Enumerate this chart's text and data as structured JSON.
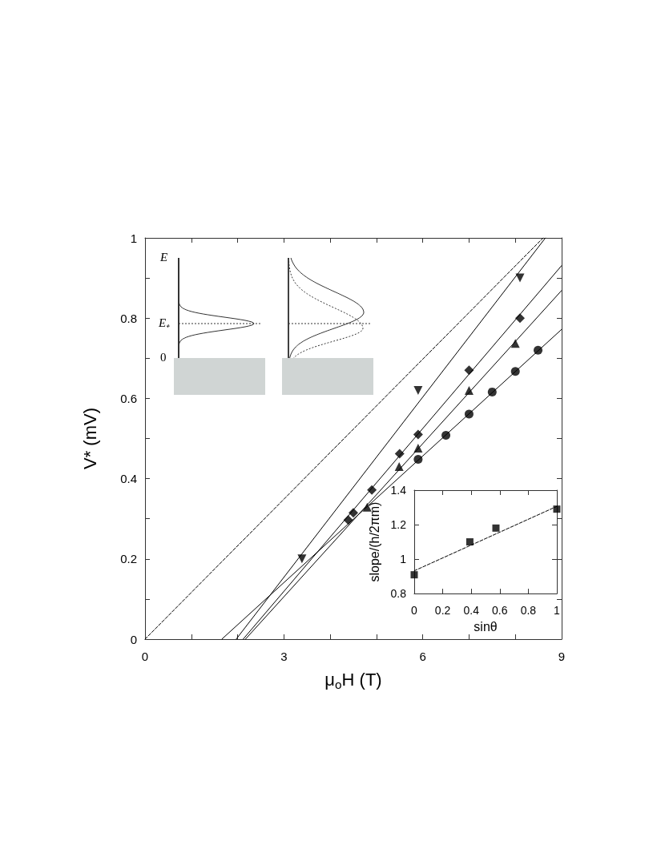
{
  "chart_data": [
    {
      "type": "scatter",
      "xlabel": "μ$_{o}$H (T)",
      "ylabel": "V* (mV)",
      "xlim": [
        0,
        9
      ],
      "ylim": [
        0,
        1
      ],
      "xticks": [
        0,
        {
          "value": 1,
          "label": null
        },
        {
          "value": 2,
          "label": null
        },
        3,
        {
          "value": 4,
          "label": null
        },
        {
          "value": 5,
          "label": null
        },
        6,
        {
          "value": 7,
          "label": null
        },
        {
          "value": 8,
          "label": null
        },
        9
      ],
      "yticks": [
        0,
        {
          "value": 0.1,
          "label": null
        },
        0.2,
        {
          "value": 0.3,
          "label": null
        },
        0.4,
        {
          "value": 0.5,
          "label": null
        },
        0.6,
        {
          "value": 0.7,
          "label": null
        },
        0.8,
        {
          "value": 0.9,
          "label": null
        },
        1
      ],
      "annotations": [
        "E",
        "E₊",
        "0"
      ],
      "series": [
        {
          "color": "#000000",
          "marker": "triangle-down",
          "x": [
            3.39,
            5.9,
            8.1
          ],
          "values": [
            0.2,
            0.62,
            0.9
          ]
        },
        {
          "color": "#000000",
          "marker": "diamond",
          "x": [
            4.39,
            4.5,
            4.9,
            5.5,
            5.9,
            7.0,
            8.1
          ],
          "values": [
            0.297,
            0.315,
            0.372,
            0.462,
            0.51,
            0.67,
            0.8
          ]
        },
        {
          "color": "#000000",
          "marker": "triangle",
          "x": [
            4.8,
            5.49,
            5.9,
            7.0,
            8.0
          ],
          "values": [
            0.329,
            0.43,
            0.476,
            0.62,
            0.737
          ]
        },
        {
          "color": "#000000",
          "marker": "circle",
          "x": [
            5.9,
            6.5,
            7.0,
            7.5,
            8.0,
            8.49
          ],
          "values": [
            0.448,
            0.508,
            0.561,
            0.616,
            0.667,
            0.72
          ]
        },
        {
          "type": "line",
          "color": "#000000",
          "marker": "none",
          "line_style": "solid",
          "x": [
            1.97,
            8.65
          ],
          "values": [
            0,
            1
          ]
        },
        {
          "type": "line",
          "color": "#000000",
          "marker": "none",
          "line_style": "solid",
          "x": [
            2.12,
            9
          ],
          "values": [
            0,
            0.931
          ]
        },
        {
          "type": "line",
          "color": "#000000",
          "marker": "none",
          "line_style": "solid",
          "x": [
            2.17,
            9
          ],
          "values": [
            0,
            0.869
          ]
        },
        {
          "type": "line",
          "color": "#000000",
          "marker": "none",
          "line_style": "solid",
          "x": [
            1.66,
            9
          ],
          "values": [
            0,
            0.772
          ]
        },
        {
          "type": "line",
          "color": "#000000",
          "marker": "none",
          "line_style": "dashed",
          "x": [
            0,
            8.6
          ],
          "values": [
            0,
            1
          ]
        }
      ]
    },
    {
      "type": "scatter",
      "xlabel": "sinθ",
      "ylabel": "slope/(h/2πm)",
      "xlim": [
        0,
        1
      ],
      "ylim": [
        0.8,
        1.4
      ],
      "xticks": [
        0,
        0.2,
        0.4,
        0.6,
        0.8,
        1
      ],
      "yticks": [
        0.8,
        1,
        1.2,
        1.4
      ],
      "series": [
        {
          "color": "#000000",
          "marker": "square",
          "x": [
            0,
            0.39,
            0.573,
            1.0
          ],
          "values": [
            0.909,
            1.1,
            1.18,
            1.29
          ]
        },
        {
          "type": "line",
          "color": "#000000",
          "marker": "none",
          "line_style": "dashed",
          "x": [
            0,
            1
          ],
          "values": [
            0.932,
            1.306
          ]
        }
      ]
    }
  ]
}
